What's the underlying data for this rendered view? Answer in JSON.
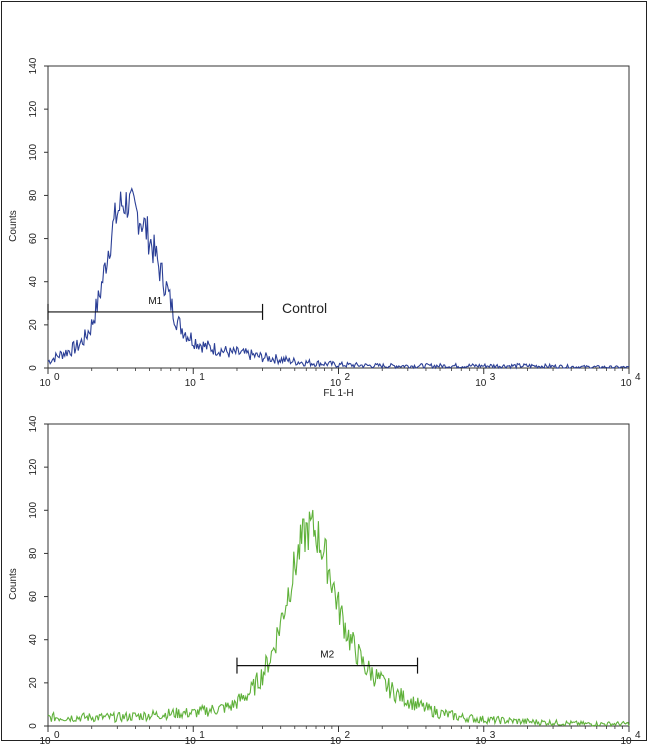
{
  "chart_data": [
    {
      "type": "line",
      "ylabel": "Counts",
      "xlabel": "FL 1-H",
      "xscale": "log",
      "xlim": [
        1,
        10000
      ],
      "ylim": [
        0,
        140
      ],
      "y_ticks": [
        "0",
        "20",
        "40",
        "60",
        "80",
        "100",
        "120",
        "140"
      ],
      "x_ticks": [
        {
          "base": "10",
          "exp": "0"
        },
        {
          "base": "10",
          "exp": "1"
        },
        {
          "base": "10",
          "exp": "2"
        },
        {
          "base": "10",
          "exp": "3"
        },
        {
          "base": "10",
          "exp": "4"
        }
      ],
      "series_color": "#2b3f96",
      "x": [
        1.0,
        1.2,
        1.4,
        1.6,
        1.8,
        2.0,
        2.2,
        2.4,
        2.6,
        2.8,
        3.0,
        3.2,
        3.5,
        3.8,
        4.0,
        4.3,
        4.6,
        5.0,
        5.5,
        6.0,
        6.5,
        7.0,
        7.5,
        8.0,
        9.0,
        10.0,
        12.0,
        14.0,
        16.0,
        18.0,
        20.0,
        25.0,
        30.0,
        40.0,
        50.0,
        60.0,
        80.0,
        100.0,
        150.0,
        200.0,
        300.0,
        500.0,
        1000.0,
        2000.0,
        5000.0,
        10000.0
      ],
      "y": [
        3,
        6,
        8,
        10,
        14,
        20,
        30,
        42,
        55,
        65,
        72,
        76,
        77,
        74,
        72,
        70,
        66,
        60,
        52,
        44,
        38,
        30,
        24,
        20,
        16,
        13,
        10,
        9,
        8,
        7,
        7,
        6,
        5,
        4,
        3,
        2.5,
        2,
        1.5,
        1.2,
        1,
        1,
        1,
        1,
        1,
        0.5,
        0.3
      ],
      "markers": [
        {
          "label": "M1",
          "x_start": 1.0,
          "x_end": 30.0,
          "y": 26
        }
      ],
      "annotations": [
        "Control"
      ]
    },
    {
      "type": "line",
      "ylabel": "Counts",
      "xlabel": "",
      "xscale": "log",
      "xlim": [
        1,
        10000
      ],
      "ylim": [
        0,
        140
      ],
      "y_ticks": [
        "0",
        "20",
        "40",
        "60",
        "80",
        "100",
        "120",
        "140"
      ],
      "x_ticks": [
        {
          "base": "10",
          "exp": "0"
        },
        {
          "base": "10",
          "exp": "1"
        },
        {
          "base": "10",
          "exp": "2"
        },
        {
          "base": "10",
          "exp": "3"
        },
        {
          "base": "10",
          "exp": "4"
        }
      ],
      "series_color": "#5fb13a",
      "x": [
        1.0,
        2.0,
        3.0,
        5.0,
        8.0,
        10.0,
        12.0,
        15.0,
        18.0,
        20.0,
        25.0,
        30.0,
        35.0,
        40.0,
        45.0,
        50.0,
        55.0,
        60.0,
        65.0,
        70.0,
        75.0,
        80.0,
        90.0,
        100.0,
        120.0,
        150.0,
        200.0,
        250.0,
        300.0,
        400.0,
        500.0,
        700.0,
        1000.0,
        2000.0,
        5000.0,
        10000.0
      ],
      "y": [
        4,
        4,
        4,
        5,
        6,
        6,
        7,
        8,
        9,
        11,
        16,
        24,
        34,
        48,
        62,
        74,
        84,
        90,
        92,
        90,
        85,
        80,
        68,
        55,
        40,
        28,
        20,
        15,
        12,
        8,
        6,
        4,
        3,
        2,
        1,
        1
      ],
      "markers": [
        {
          "label": "M2",
          "x_start": 20.0,
          "x_end": 350.0,
          "y": 28
        }
      ],
      "annotations": []
    }
  ]
}
